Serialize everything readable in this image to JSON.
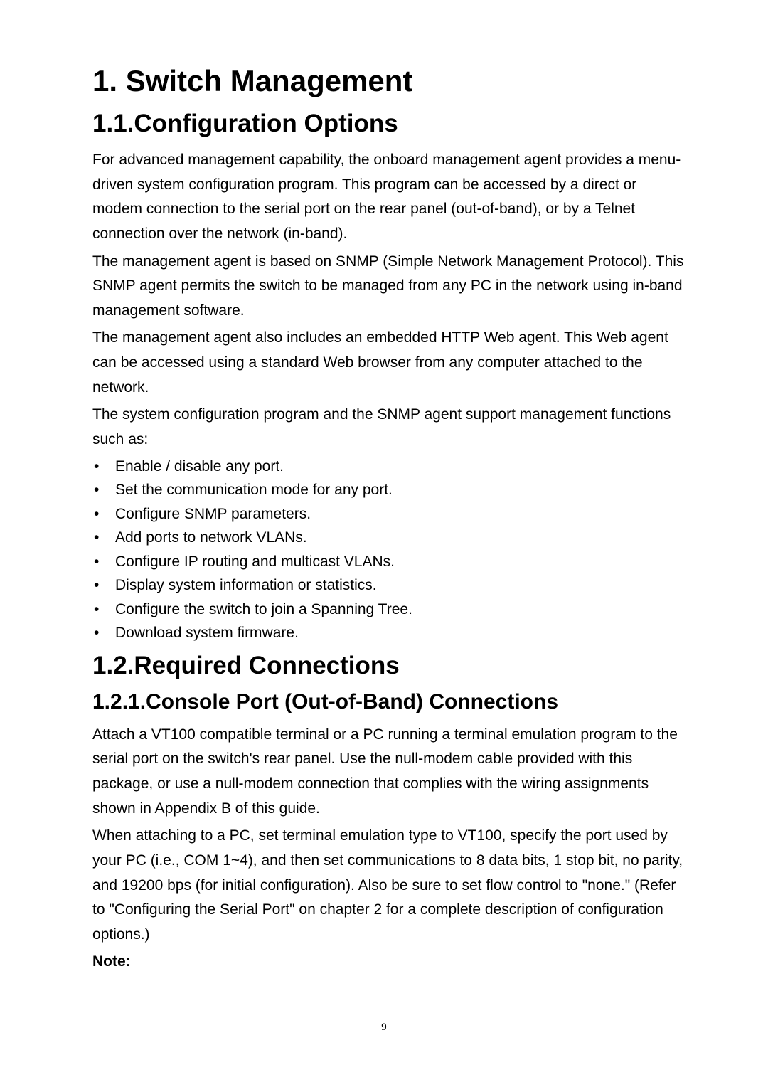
{
  "heading1": "1. Switch Management",
  "section1": {
    "heading": "1.1.Configuration Options",
    "para1": "For advanced management capability, the onboard management agent provides a menu-driven system configuration program. This program can be accessed by a direct or modem connection to the serial port on the rear panel (out-of-band), or by a Telnet connection over the network (in-band).",
    "para2": "The management agent is based on SNMP (Simple Network Management Protocol). This SNMP agent permits the switch to be managed from any PC in the network using in-band management software.",
    "para3": "The management agent also includes an embedded HTTP Web agent. This Web agent can be accessed using a standard Web browser from any computer attached to the network.",
    "para4": "The system configuration program and the SNMP agent support management functions such as:",
    "bullets": [
      "Enable / disable any port.",
      "Set the communication mode for any port.",
      "Configure SNMP parameters.",
      "Add ports to network VLANs.",
      "Configure IP routing and multicast VLANs.",
      "Display system information or statistics.",
      "Configure the switch to join a Spanning Tree.",
      "Download system firmware."
    ]
  },
  "section2": {
    "heading": "1.2.Required Connections",
    "subsection": {
      "heading": "1.2.1.Console Port (Out-of-Band) Connections",
      "para1": "Attach a VT100 compatible terminal or a PC running a terminal emulation program to the serial port on the switch's rear panel. Use the null-modem cable provided with this package, or use a null-modem connection that complies with the wiring assignments shown in Appendix B of this guide.",
      "para2": "When attaching to a PC, set terminal emulation type to VT100, specify the port used by your PC (i.e., COM 1~4), and then set communications to 8 data bits, 1 stop bit, no parity, and 19200 bps (for initial configuration). Also be sure to set flow control to \"none.\" (Refer to \"Configuring the Serial Port\" on chapter 2 for a complete description of configuration options.)",
      "note": "Note:"
    }
  },
  "pageNumber": "9"
}
